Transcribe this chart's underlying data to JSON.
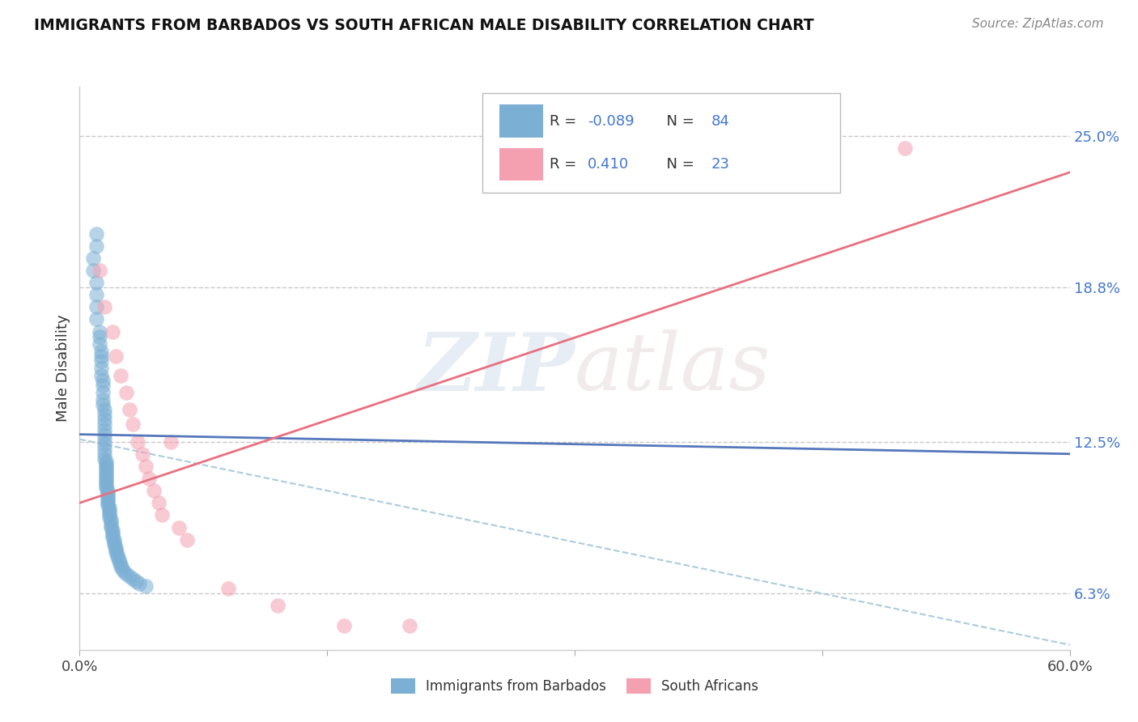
{
  "title": "IMMIGRANTS FROM BARBADOS VS SOUTH AFRICAN MALE DISABILITY CORRELATION CHART",
  "source": "Source: ZipAtlas.com",
  "ylabel": "Male Disability",
  "xlim": [
    0.0,
    0.6
  ],
  "ylim": [
    0.04,
    0.27
  ],
  "x_tick_positions": [
    0.0,
    0.15,
    0.3,
    0.45,
    0.6
  ],
  "x_tick_labels": [
    "0.0%",
    "",
    "",
    "",
    "60.0%"
  ],
  "y_tick_values_right": [
    0.063,
    0.125,
    0.188,
    0.25
  ],
  "y_tick_labels_right": [
    "6.3%",
    "12.5%",
    "18.8%",
    "25.0%"
  ],
  "color_blue": "#7BAFD4",
  "color_pink": "#F4A0B0",
  "color_blue_line": "#5577BB",
  "color_pink_line": "#E87080",
  "color_dashed": "#AACCDD",
  "watermark_zip": "ZIP",
  "watermark_atlas": "atlas",
  "blue_scatter_x": [
    0.008,
    0.008,
    0.01,
    0.01,
    0.01,
    0.01,
    0.01,
    0.01,
    0.012,
    0.012,
    0.012,
    0.013,
    0.013,
    0.013,
    0.013,
    0.013,
    0.014,
    0.014,
    0.014,
    0.014,
    0.014,
    0.015,
    0.015,
    0.015,
    0.015,
    0.015,
    0.015,
    0.015,
    0.015,
    0.015,
    0.015,
    0.015,
    0.016,
    0.016,
    0.016,
    0.016,
    0.016,
    0.016,
    0.016,
    0.016,
    0.016,
    0.016,
    0.016,
    0.016,
    0.017,
    0.017,
    0.017,
    0.017,
    0.017,
    0.017,
    0.017,
    0.018,
    0.018,
    0.018,
    0.018,
    0.018,
    0.019,
    0.019,
    0.019,
    0.019,
    0.02,
    0.02,
    0.02,
    0.02,
    0.021,
    0.021,
    0.021,
    0.022,
    0.022,
    0.022,
    0.023,
    0.023,
    0.024,
    0.024,
    0.025,
    0.025,
    0.026,
    0.027,
    0.028,
    0.03,
    0.032,
    0.034,
    0.036,
    0.04
  ],
  "blue_scatter_y": [
    0.2,
    0.195,
    0.21,
    0.205,
    0.19,
    0.185,
    0.18,
    0.175,
    0.17,
    0.168,
    0.165,
    0.162,
    0.16,
    0.158,
    0.155,
    0.152,
    0.15,
    0.148,
    0.145,
    0.142,
    0.14,
    0.138,
    0.136,
    0.134,
    0.132,
    0.13,
    0.128,
    0.126,
    0.124,
    0.122,
    0.12,
    0.118,
    0.117,
    0.116,
    0.115,
    0.114,
    0.113,
    0.112,
    0.111,
    0.11,
    0.109,
    0.108,
    0.107,
    0.106,
    0.105,
    0.104,
    0.103,
    0.102,
    0.101,
    0.1,
    0.099,
    0.098,
    0.097,
    0.096,
    0.095,
    0.094,
    0.093,
    0.092,
    0.091,
    0.09,
    0.089,
    0.088,
    0.087,
    0.086,
    0.085,
    0.084,
    0.083,
    0.082,
    0.081,
    0.08,
    0.079,
    0.078,
    0.077,
    0.076,
    0.075,
    0.074,
    0.073,
    0.072,
    0.071,
    0.07,
    0.069,
    0.068,
    0.067,
    0.066
  ],
  "pink_scatter_x": [
    0.012,
    0.015,
    0.02,
    0.022,
    0.025,
    0.028,
    0.03,
    0.032,
    0.035,
    0.038,
    0.04,
    0.042,
    0.045,
    0.048,
    0.05,
    0.055,
    0.06,
    0.065,
    0.09,
    0.12,
    0.16,
    0.2,
    0.5
  ],
  "pink_scatter_y": [
    0.195,
    0.18,
    0.17,
    0.16,
    0.152,
    0.145,
    0.138,
    0.132,
    0.125,
    0.12,
    0.115,
    0.11,
    0.105,
    0.1,
    0.095,
    0.125,
    0.09,
    0.085,
    0.065,
    0.058,
    0.05,
    0.05,
    0.245
  ],
  "blue_line_x": [
    0.0,
    0.6
  ],
  "blue_line_y": [
    0.128,
    0.12
  ],
  "pink_line_x": [
    0.0,
    0.6
  ],
  "pink_line_y": [
    0.1,
    0.235
  ],
  "dashed_line_x": [
    0.0,
    0.6
  ],
  "dashed_line_y": [
    0.126,
    0.042
  ]
}
